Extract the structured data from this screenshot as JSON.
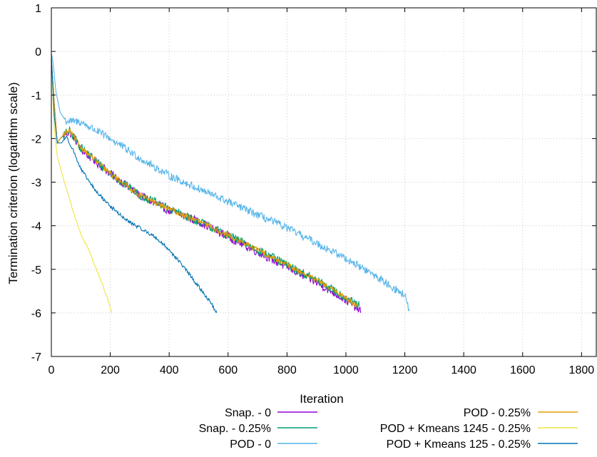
{
  "chart_data": {
    "type": "line",
    "title": "",
    "xlabel": "Iteration",
    "ylabel": "Termination criterion (logarithm scale)",
    "xlim": [
      0,
      1850
    ],
    "ylim": [
      -7,
      1
    ],
    "xticks": [
      0,
      200,
      400,
      600,
      800,
      1000,
      1200,
      1400,
      1600,
      1800
    ],
    "yticks": [
      -7,
      -6,
      -5,
      -4,
      -3,
      -2,
      -1,
      0,
      1
    ],
    "grid": true,
    "legend_position": "bottom",
    "series": [
      {
        "name": "Snap. - 0",
        "color": "#9400d3",
        "noise": 0.1,
        "points": [
          [
            0,
            -0.2
          ],
          [
            10,
            -1.2
          ],
          [
            20,
            -2.1
          ],
          [
            30,
            -2.0
          ],
          [
            45,
            -1.9
          ],
          [
            60,
            -1.85
          ],
          [
            75,
            -1.95
          ],
          [
            100,
            -2.25
          ],
          [
            200,
            -2.8
          ],
          [
            300,
            -3.3
          ],
          [
            400,
            -3.65
          ],
          [
            500,
            -3.9
          ],
          [
            600,
            -4.25
          ],
          [
            700,
            -4.6
          ],
          [
            800,
            -4.95
          ],
          [
            900,
            -5.3
          ],
          [
            1000,
            -5.7
          ],
          [
            1050,
            -5.95
          ]
        ]
      },
      {
        "name": "Snap. - 0.25%",
        "color": "#009e73",
        "noise": 0.1,
        "points": [
          [
            0,
            -0.2
          ],
          [
            10,
            -1.25
          ],
          [
            20,
            -2.1
          ],
          [
            30,
            -2.0
          ],
          [
            45,
            -1.9
          ],
          [
            60,
            -1.82
          ],
          [
            75,
            -1.95
          ],
          [
            100,
            -2.2
          ],
          [
            200,
            -2.8
          ],
          [
            300,
            -3.3
          ],
          [
            400,
            -3.62
          ],
          [
            500,
            -3.9
          ],
          [
            600,
            -4.22
          ],
          [
            700,
            -4.55
          ],
          [
            800,
            -4.9
          ],
          [
            900,
            -5.25
          ],
          [
            1000,
            -5.65
          ],
          [
            1045,
            -5.85
          ]
        ]
      },
      {
        "name": "POD - 0",
        "color": "#56b4e9",
        "noise": 0.09,
        "points": [
          [
            0,
            -0.05
          ],
          [
            5,
            -0.2
          ],
          [
            15,
            -0.9
          ],
          [
            30,
            -1.4
          ],
          [
            50,
            -1.6
          ],
          [
            100,
            -1.62
          ],
          [
            200,
            -2.0
          ],
          [
            300,
            -2.45
          ],
          [
            400,
            -2.85
          ],
          [
            500,
            -3.15
          ],
          [
            600,
            -3.45
          ],
          [
            700,
            -3.75
          ],
          [
            800,
            -4.05
          ],
          [
            900,
            -4.4
          ],
          [
            1000,
            -4.75
          ],
          [
            1100,
            -5.15
          ],
          [
            1200,
            -5.6
          ],
          [
            1215,
            -5.95
          ]
        ]
      },
      {
        "name": "POD - 0.25%",
        "color": "#e69f00",
        "noise": 0.06,
        "points": [
          [
            0,
            -0.2
          ],
          [
            10,
            -1.2
          ],
          [
            20,
            -2.1
          ],
          [
            30,
            -2.0
          ],
          [
            45,
            -1.88
          ],
          [
            60,
            -1.82
          ],
          [
            75,
            -1.95
          ],
          [
            100,
            -2.2
          ],
          [
            200,
            -2.8
          ],
          [
            300,
            -3.3
          ],
          [
            400,
            -3.62
          ],
          [
            500,
            -3.9
          ],
          [
            600,
            -4.22
          ],
          [
            700,
            -4.55
          ],
          [
            800,
            -4.9
          ],
          [
            900,
            -5.25
          ],
          [
            1000,
            -5.65
          ],
          [
            1040,
            -5.85
          ]
        ]
      },
      {
        "name": "POD + Kmeans 1245 - 0.25%",
        "color": "#f0e442",
        "noise": 0.02,
        "points": [
          [
            0,
            -0.15
          ],
          [
            5,
            -1.0
          ],
          [
            10,
            -1.8
          ],
          [
            20,
            -2.4
          ],
          [
            40,
            -2.9
          ],
          [
            60,
            -3.35
          ],
          [
            80,
            -3.8
          ],
          [
            100,
            -4.2
          ],
          [
            130,
            -4.6
          ],
          [
            150,
            -4.95
          ],
          [
            170,
            -5.3
          ],
          [
            190,
            -5.65
          ],
          [
            205,
            -6.0
          ]
        ]
      },
      {
        "name": "POD + Kmeans 125 - 0.25%",
        "color": "#0072b2",
        "noise": 0.04,
        "points": [
          [
            0,
            -0.1
          ],
          [
            5,
            -0.8
          ],
          [
            10,
            -1.5
          ],
          [
            20,
            -2.1
          ],
          [
            35,
            -2.1
          ],
          [
            50,
            -1.95
          ],
          [
            70,
            -2.2
          ],
          [
            100,
            -2.7
          ],
          [
            150,
            -3.2
          ],
          [
            200,
            -3.55
          ],
          [
            250,
            -3.85
          ],
          [
            300,
            -4.05
          ],
          [
            350,
            -4.25
          ],
          [
            400,
            -4.55
          ],
          [
            450,
            -4.95
          ],
          [
            500,
            -5.4
          ],
          [
            540,
            -5.75
          ],
          [
            560,
            -6.0
          ]
        ]
      }
    ]
  }
}
